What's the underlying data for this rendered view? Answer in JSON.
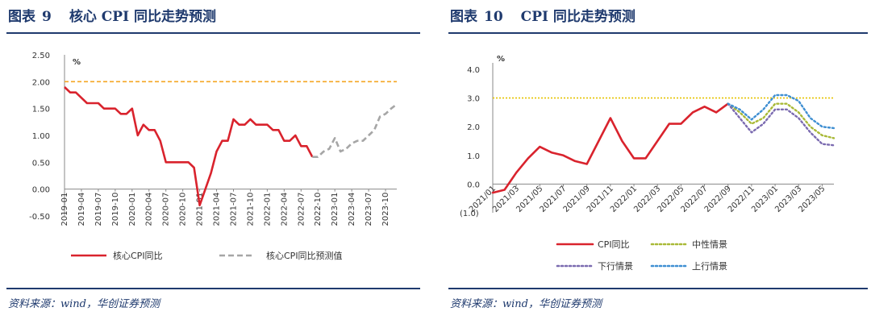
{
  "left": {
    "fig_label": "图表",
    "fig_number": "9",
    "title": "核心 CPI 同比走势预测",
    "source": "资料来源：wind，华创证券预测",
    "chart_data": {
      "type": "line",
      "unit_label": "%",
      "y_ticks": [
        "2.50",
        "2.00",
        "1.50",
        "1.00",
        "0.50",
        "0.00",
        "-0.50"
      ],
      "ylim": [
        -0.5,
        2.5
      ],
      "x_ticks": [
        "2019-01",
        "2019-04",
        "2019-07",
        "2019-10",
        "2020-01",
        "2020-04",
        "2020-07",
        "2020-10",
        "2021-01",
        "2021-04",
        "2021-07",
        "2021-10",
        "2022-01",
        "2022-04",
        "2022-07",
        "2022-10",
        "2023-01",
        "2023-04",
        "2023-07",
        "2023-10"
      ],
      "reference_line": 2.0,
      "series": [
        {
          "name": "核心CPI同比",
          "color": "#d9232d",
          "style": "solid",
          "values": [
            1.9,
            1.8,
            1.8,
            1.7,
            1.6,
            1.6,
            1.6,
            1.5,
            1.5,
            1.5,
            1.4,
            1.4,
            1.5,
            1.0,
            1.2,
            1.1,
            1.1,
            0.9,
            0.5,
            0.5,
            0.5,
            0.5,
            0.5,
            0.4,
            -0.3,
            0.0,
            0.3,
            0.7,
            0.9,
            0.9,
            1.3,
            1.2,
            1.2,
            1.3,
            1.2,
            1.2,
            1.2,
            1.1,
            1.1,
            0.9,
            0.9,
            1.0,
            0.8,
            0.8,
            0.6
          ]
        },
        {
          "name": "核心CPI同比预测值",
          "color": "#a6a6a6",
          "style": "dashed",
          "start_index": 44,
          "values": [
            0.6,
            0.6,
            0.7,
            0.75,
            0.95,
            0.7,
            0.75,
            0.85,
            0.9,
            0.9,
            1.0,
            1.1,
            1.35,
            1.4,
            1.5,
            1.58
          ]
        }
      ]
    }
  },
  "right": {
    "fig_label": "图表",
    "fig_number": "10",
    "title": "CPI 同比走势预测",
    "source": "资料来源：wind，华创证券预测",
    "chart_data": {
      "type": "line",
      "unit_label": "%",
      "y_ticks": [
        "4.0",
        "3.0",
        "2.0",
        "1.0",
        "0.0"
      ],
      "negative_label": "(1.0)",
      "ylim": [
        -1.0,
        4.0
      ],
      "x_ticks": [
        "2021/01",
        "2021/03",
        "2021/05",
        "2021/07",
        "2021/09",
        "2021/11",
        "2022/01",
        "2022/03",
        "2022/05",
        "2022/07",
        "2022/09",
        "2022/11",
        "2023/01",
        "2023/03",
        "2023/05"
      ],
      "reference_line": 3.0,
      "series": [
        {
          "name": "CPI同比",
          "color": "#d9232d",
          "style": "solid",
          "values": [
            -0.3,
            -0.2,
            0.4,
            0.9,
            1.3,
            1.1,
            1.0,
            0.8,
            0.7,
            1.5,
            2.3,
            1.5,
            0.9,
            0.9,
            1.5,
            2.1,
            2.1,
            2.5,
            2.7,
            2.5,
            2.8
          ]
        },
        {
          "name": "中性情景",
          "color": "#a9b937",
          "style": "dotted",
          "start_index": 20,
          "values": [
            2.8,
            2.5,
            2.1,
            2.3,
            2.8,
            2.8,
            2.5,
            2.0,
            1.7,
            1.6
          ]
        },
        {
          "name": "下行情景",
          "color": "#7b6bb0",
          "style": "dotted",
          "start_index": 20,
          "values": [
            2.8,
            2.3,
            1.8,
            2.1,
            2.6,
            2.6,
            2.3,
            1.8,
            1.4,
            1.35
          ]
        },
        {
          "name": "上行情景",
          "color": "#3f8fd2",
          "style": "dotted",
          "start_index": 20,
          "values": [
            2.8,
            2.6,
            2.25,
            2.6,
            3.1,
            3.1,
            2.9,
            2.3,
            2.0,
            1.95
          ]
        }
      ]
    }
  }
}
